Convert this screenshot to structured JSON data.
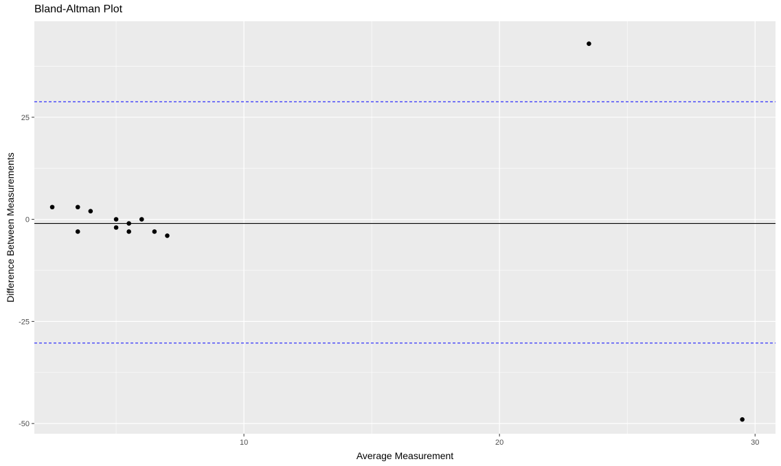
{
  "chart_data": {
    "type": "scatter",
    "title": "Bland-Altman Plot",
    "xlabel": "Average Measurement",
    "ylabel": "Difference Between Measurements",
    "xlim": [
      1.8,
      30.8
    ],
    "ylim": [
      -52.5,
      48.5
    ],
    "x_ticks": [
      10,
      20,
      30
    ],
    "y_ticks": [
      -50,
      -25,
      0,
      25
    ],
    "x_tick_labels": [
      "10",
      "20",
      "30"
    ],
    "y_tick_labels": [
      "-50",
      "-25",
      "0",
      "25"
    ],
    "grid": true,
    "legend": "none",
    "points": [
      {
        "x": 2.5,
        "y": 3
      },
      {
        "x": 3.5,
        "y": 3
      },
      {
        "x": 3.5,
        "y": -3
      },
      {
        "x": 4.0,
        "y": 2
      },
      {
        "x": 5.0,
        "y": 0
      },
      {
        "x": 5.0,
        "y": -2
      },
      {
        "x": 5.5,
        "y": -1
      },
      {
        "x": 5.5,
        "y": -3
      },
      {
        "x": 6.0,
        "y": 0
      },
      {
        "x": 6.5,
        "y": -3
      },
      {
        "x": 7.0,
        "y": -4
      },
      {
        "x": 23.5,
        "y": 43
      },
      {
        "x": 29.5,
        "y": -49
      }
    ],
    "mean_difference": -1,
    "upper_limit": 28.8,
    "lower_limit": -30.3,
    "colors": {
      "panel": "#ebebeb",
      "grid": "#ffffff",
      "point": "#000000",
      "mean_line": "#000000",
      "limit_line": "#0000ff"
    }
  }
}
